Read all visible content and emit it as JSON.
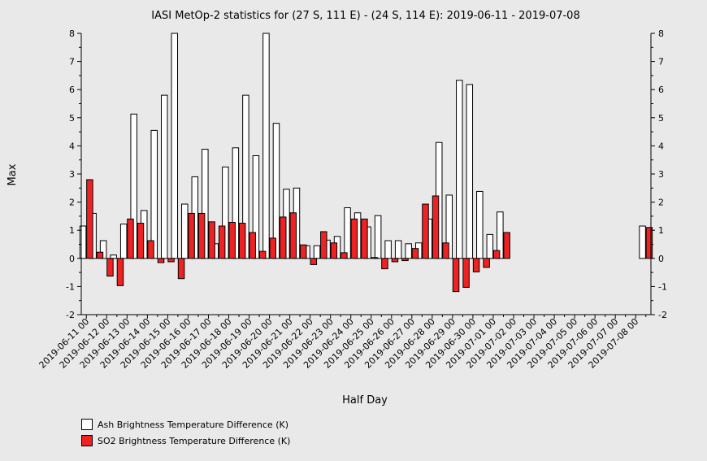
{
  "chart_data": {
    "type": "bar",
    "title": "IASI MetOp-2 statistics for (27 S, 111 E) - (24 S, 114 E): 2019-06-11 - 2019-07-08",
    "xlabel": "Half Day",
    "ylabel": "Max",
    "ylim": [
      -2,
      8
    ],
    "yticks": [
      -2,
      -1,
      0,
      1,
      2,
      3,
      4,
      5,
      6,
      7,
      8
    ],
    "ytick_labels": [
      "-2",
      "-1",
      "0",
      "1",
      "2",
      "3",
      "4",
      "5",
      "6",
      "7",
      "8"
    ],
    "grid": false,
    "legend_position": "bottom-left",
    "colors": {
      "background": "#e9e9e9",
      "ash": "#ffffff",
      "so2": "#ee2222",
      "outline": "#000000"
    },
    "categories": [
      "2019-06-11 00",
      "2019-06-11 12",
      "2019-06-12 00",
      "2019-06-12 12",
      "2019-06-13 00",
      "2019-06-13 12",
      "2019-06-14 00",
      "2019-06-14 12",
      "2019-06-15 00",
      "2019-06-15 12",
      "2019-06-16 00",
      "2019-06-16 12",
      "2019-06-17 00",
      "2019-06-17 12",
      "2019-06-18 00",
      "2019-06-18 12",
      "2019-06-19 00",
      "2019-06-19 12",
      "2019-06-20 00",
      "2019-06-20 12",
      "2019-06-21 00",
      "2019-06-21 12",
      "2019-06-22 00",
      "2019-06-22 12",
      "2019-06-23 00",
      "2019-06-23 12",
      "2019-06-24 00",
      "2019-06-24 12",
      "2019-06-25 00",
      "2019-06-25 12",
      "2019-06-26 00",
      "2019-06-26 12",
      "2019-06-27 00",
      "2019-06-27 12",
      "2019-06-28 00",
      "2019-06-28 12",
      "2019-06-29 00",
      "2019-06-29 12",
      "2019-06-30 00",
      "2019-06-30 12",
      "2019-07-01 00",
      "2019-07-01 12",
      "2019-07-02 00",
      "2019-07-02 12",
      "2019-07-03 00",
      "2019-07-03 12",
      "2019-07-04 00",
      "2019-07-04 12",
      "2019-07-05 00",
      "2019-07-05 12",
      "2019-07-06 00",
      "2019-07-06 12",
      "2019-07-07 00",
      "2019-07-07 12",
      "2019-07-08 00",
      "2019-07-08 12"
    ],
    "tick_labels": [
      "2019-06-11 00",
      "2019-06-12 00",
      "2019-06-13 00",
      "2019-06-14 00",
      "2019-06-15 00",
      "2019-06-16 00",
      "2019-06-17 00",
      "2019-06-18 00",
      "2019-06-19 00",
      "2019-06-20 00",
      "2019-06-21 00",
      "2019-06-22 00",
      "2019-06-23 00",
      "2019-06-24 00",
      "2019-06-25 00",
      "2019-06-26 00",
      "2019-06-27 00",
      "2019-06-28 00",
      "2019-06-29 00",
      "2019-06-30 00",
      "2019-07-01 00",
      "2019-07-02 00",
      "2019-07-03 00",
      "2019-07-04 00",
      "2019-07-05 00",
      "2019-07-06 00",
      "2019-07-07 00",
      "2019-07-08 00"
    ],
    "series": [
      {
        "name": "Ash Brightness Temperature Difference (K)",
        "values": [
          1.15,
          1.6,
          0.63,
          0.12,
          1.22,
          5.13,
          1.7,
          4.55,
          5.8,
          8.0,
          1.93,
          2.9,
          3.88,
          0.52,
          3.25,
          3.93,
          5.8,
          3.65,
          8.0,
          4.8,
          2.46,
          2.5,
          0.45,
          0.45,
          0.65,
          0.78,
          1.8,
          1.62,
          1.12,
          1.52,
          0.63,
          0.63,
          0.52,
          0.55,
          1.4,
          4.12,
          2.25,
          6.33,
          6.18,
          2.38,
          0.85,
          1.65,
          null,
          null,
          null,
          null,
          null,
          null,
          null,
          null,
          null,
          null,
          null,
          null,
          null,
          1.15
        ]
      },
      {
        "name": "SO2 Brightness Temperature Difference (K)",
        "values": [
          2.8,
          0.22,
          -0.63,
          -0.97,
          1.4,
          1.25,
          0.63,
          -0.15,
          -0.12,
          -0.72,
          1.6,
          1.6,
          1.3,
          1.15,
          1.28,
          1.25,
          0.92,
          0.25,
          0.72,
          1.47,
          1.62,
          0.48,
          -0.22,
          0.95,
          0.55,
          0.2,
          1.4,
          1.4,
          0.03,
          -0.37,
          -0.12,
          -0.08,
          0.35,
          1.93,
          2.22,
          0.55,
          -1.18,
          -1.03,
          -0.48,
          -0.32,
          0.28,
          0.92,
          null,
          null,
          null,
          null,
          null,
          null,
          null,
          null,
          null,
          null,
          null,
          null,
          null,
          1.1
        ]
      }
    ]
  }
}
